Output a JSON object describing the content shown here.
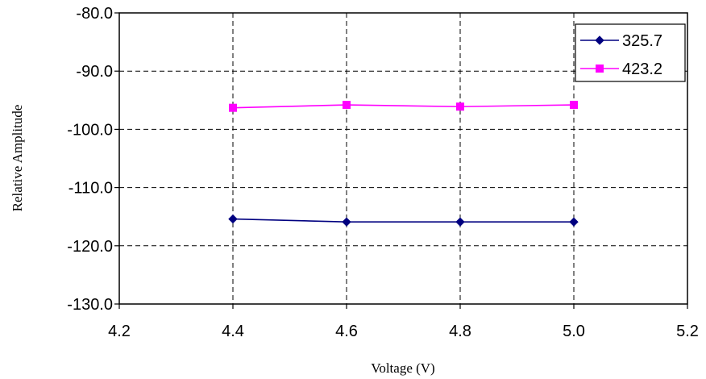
{
  "chart_data": {
    "type": "line",
    "xlabel": "Voltage (V)",
    "ylabel": "Relative Amplitude",
    "xlim": [
      4.2,
      5.2
    ],
    "ylim": [
      -130,
      -80
    ],
    "x_ticks": [
      "4.2",
      "4.4",
      "4.6",
      "4.8",
      "5.0",
      "5.2"
    ],
    "y_ticks": [
      "-80.0",
      "-90.0",
      "-100.0",
      "-110.0",
      "-120.0",
      "-130.0"
    ],
    "grid": true,
    "legend_position": "top-right",
    "series": [
      {
        "name": "325.7",
        "color": "#000080",
        "marker": "diamond",
        "x": [
          4.4,
          4.6,
          4.8,
          5.0
        ],
        "y": [
          -115.4,
          -115.9,
          -115.9,
          -115.9
        ]
      },
      {
        "name": "423.2",
        "color": "#FF00FF",
        "marker": "square",
        "x": [
          4.4,
          4.6,
          4.8,
          5.0
        ],
        "y": [
          -96.3,
          -95.8,
          -96.1,
          -95.8
        ]
      }
    ]
  }
}
